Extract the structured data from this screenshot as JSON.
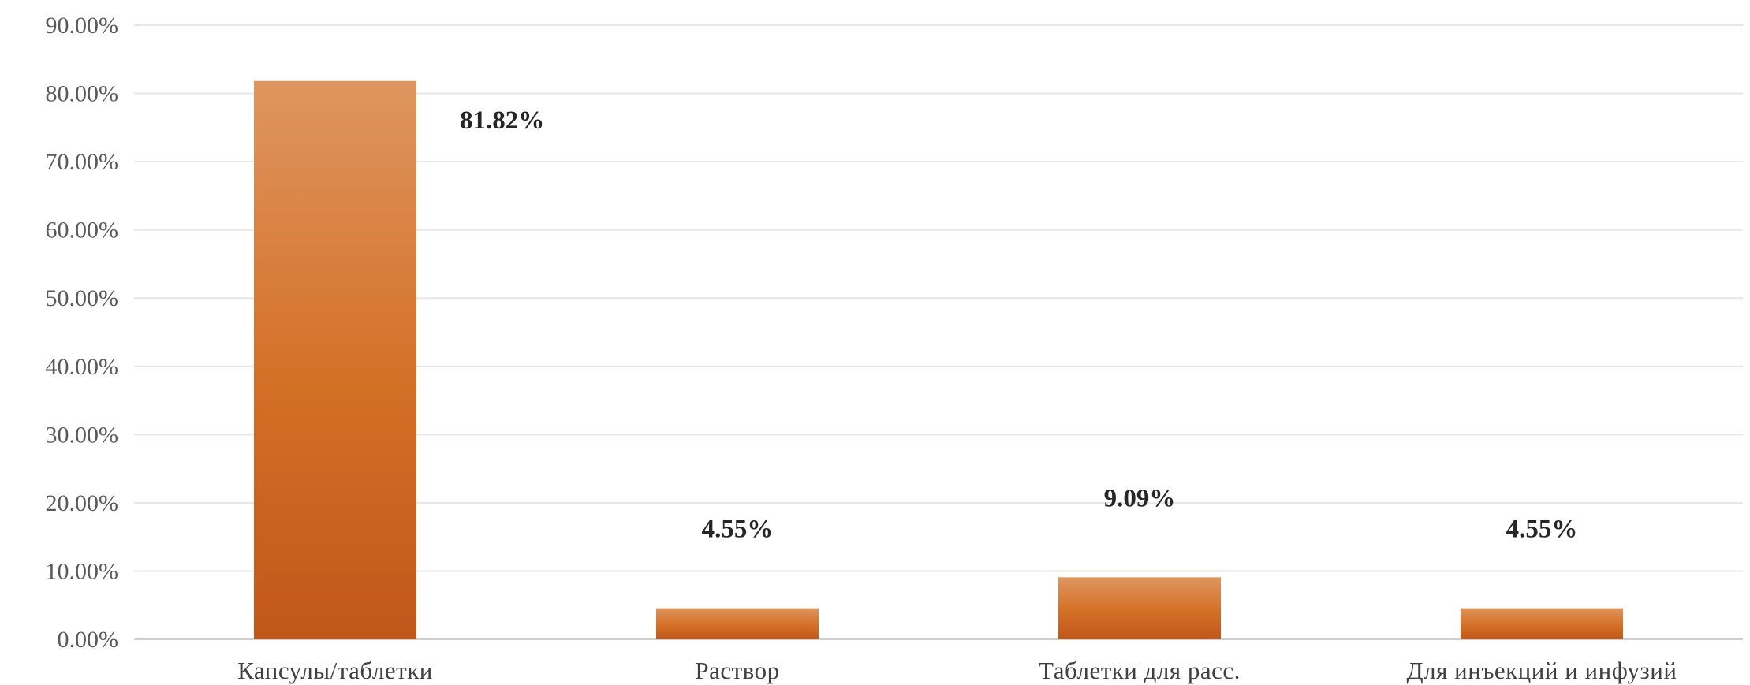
{
  "chart_data": {
    "type": "bar",
    "title": "",
    "xlabel": "",
    "ylabel": "",
    "categories": [
      "Капсулы/таблетки",
      "Раствор",
      "Таблетки для расс.",
      "Для инъекций и инфузий"
    ],
    "values": [
      81.82,
      4.55,
      9.09,
      4.55
    ],
    "data_labels": [
      "81.82%",
      "4.55%",
      "9.09%",
      "4.55%"
    ],
    "ylim": [
      0,
      90
    ],
    "yticks": [
      0,
      10,
      20,
      30,
      40,
      50,
      60,
      70,
      80,
      90
    ],
    "ytick_labels": [
      "0.00%",
      "10.00%",
      "20.00%",
      "30.00%",
      "40.00%",
      "50.00%",
      "60.00%",
      "70.00%",
      "80.00%",
      "90.00%"
    ],
    "grid": true,
    "legend": "none",
    "colors": {
      "bar_top": "#de965f",
      "bar_mid": "#d46f26",
      "bar_bottom": "#c0571b",
      "gridline": "#e6e6e6",
      "text": "#404040"
    }
  }
}
